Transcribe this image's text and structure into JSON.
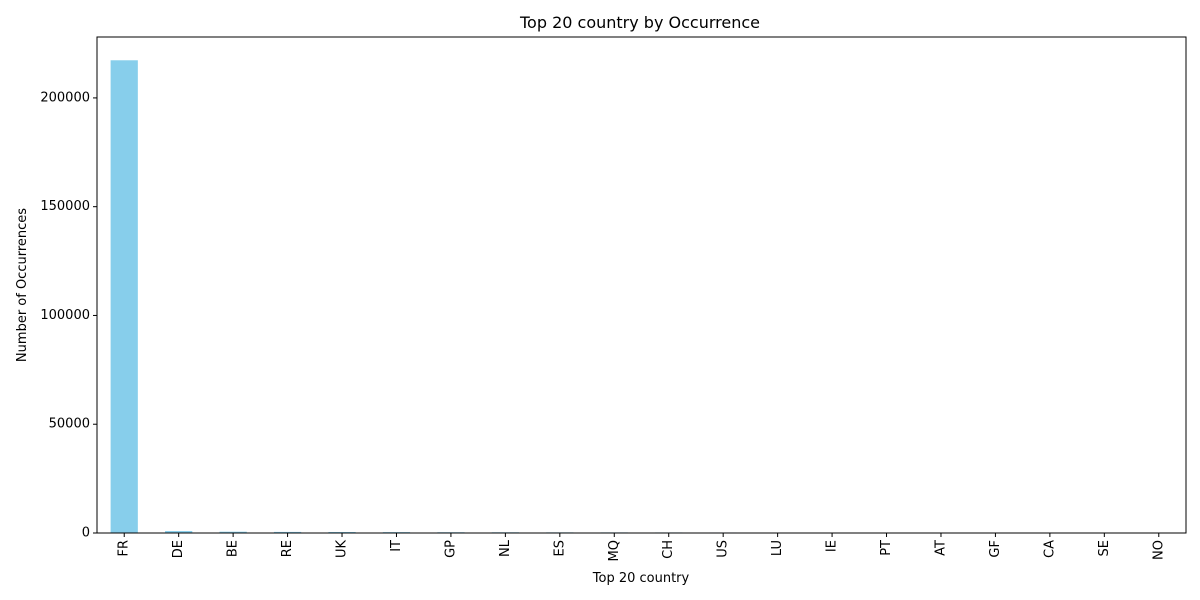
{
  "chart_data": {
    "type": "bar",
    "title": "Top 20 country by Occurrence",
    "xlabel": "Top 20 country",
    "ylabel": "Number of Occurrences",
    "categories": [
      "FR",
      "DE",
      "BE",
      "RE",
      "UK",
      "IT",
      "GP",
      "NL",
      "ES",
      "MQ",
      "CH",
      "US",
      "LU",
      "IE",
      "PT",
      "AT",
      "GF",
      "CA",
      "SE",
      "NO"
    ],
    "values": [
      217300,
      900,
      600,
      500,
      450,
      400,
      350,
      330,
      300,
      280,
      260,
      240,
      120,
      100,
      90,
      80,
      70,
      60,
      50,
      40
    ],
    "ylim": [
      0,
      228000
    ],
    "yticks": [
      0,
      50000,
      100000,
      150000,
      200000
    ],
    "ytick_labels": [
      "0",
      "50000",
      "100000",
      "150000",
      "200000"
    ],
    "bar_color": "#87ceeb",
    "grid": false,
    "legend": "none"
  }
}
